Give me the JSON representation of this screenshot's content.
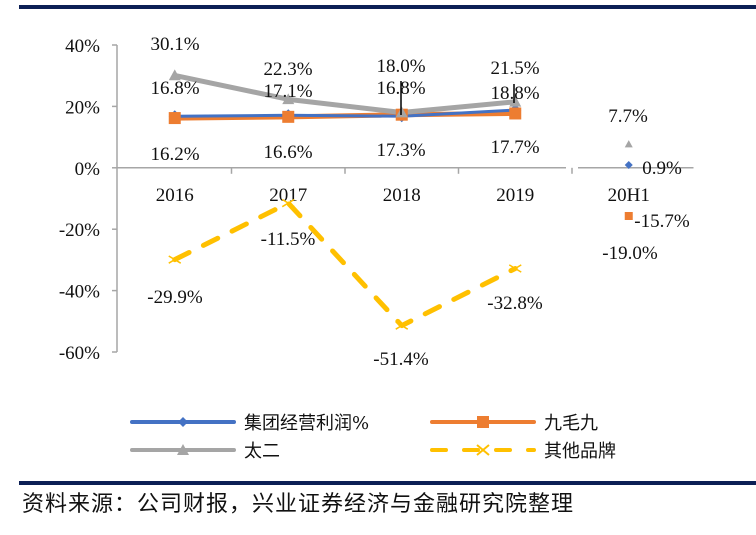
{
  "chart_data": {
    "type": "line",
    "title": "",
    "xlabel": "",
    "ylabel": "",
    "categories": [
      "2016",
      "2017",
      "2018",
      "2019",
      "20H1"
    ],
    "ylim": [
      -60,
      40
    ],
    "yticks": [
      40,
      20,
      0,
      -20,
      -40,
      -60
    ],
    "ytick_labels": [
      "40%",
      "20%",
      "0%",
      "-20%",
      "-40%",
      "-60%"
    ],
    "grid": false,
    "legend_position": "bottom",
    "series": [
      {
        "name": "集团经营利润%",
        "color": "#4472c4",
        "marker": "diamond",
        "dash": false,
        "values": [
          16.8,
          17.1,
          16.8,
          18.8,
          0.9
        ],
        "labels": [
          "16.8%",
          "17.1%",
          "16.8%",
          "18.8%",
          "0.9%"
        ]
      },
      {
        "name": "九毛九",
        "color": "#ed7d31",
        "marker": "square",
        "dash": false,
        "values": [
          16.2,
          16.6,
          17.3,
          17.7,
          -15.7
        ],
        "labels": [
          "16.2%",
          "16.6%",
          "17.3%",
          "17.7%",
          "-15.7%"
        ]
      },
      {
        "name": "太二",
        "color": "#a5a5a5",
        "marker": "triangle",
        "dash": false,
        "values": [
          30.1,
          22.3,
          18.0,
          21.5,
          7.7
        ],
        "labels": [
          "30.1%",
          "22.3%",
          "18.0%",
          "21.5%",
          "7.7%"
        ]
      },
      {
        "name": "其他品牌",
        "color": "#ffc000",
        "marker": "x",
        "dash": true,
        "values": [
          -29.9,
          -11.5,
          -51.4,
          -32.8,
          -19.0
        ],
        "labels": [
          "-29.9%",
          "-11.5%",
          "-51.4%",
          "-32.8%",
          "-19.0%"
        ]
      }
    ]
  },
  "source_note": "资料来源：公司财报，兴业证券经济与金融研究院整理"
}
